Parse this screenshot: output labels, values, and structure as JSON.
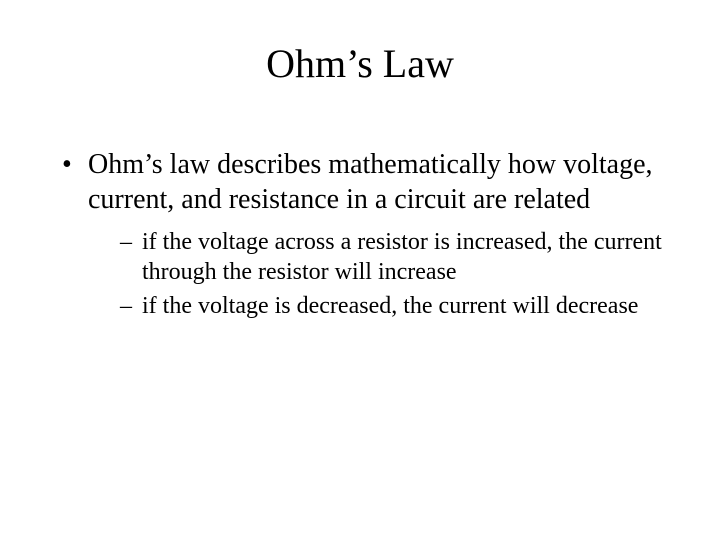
{
  "title": "Ohm’s Law",
  "bullets": [
    {
      "text": "Ohm’s law describes mathematically how voltage, current, and resistance in a circuit are related",
      "sub": [
        "if the voltage across a resistor is increased, the current through the resistor will increase",
        "if the voltage is decreased, the current will decrease"
      ]
    }
  ],
  "style": {
    "background_color": "#ffffff",
    "text_color": "#000000",
    "font_family": "Times New Roman",
    "title_fontsize": 40,
    "body_fontsize": 28,
    "sub_fontsize": 24,
    "slide_width": 720,
    "slide_height": 540
  }
}
